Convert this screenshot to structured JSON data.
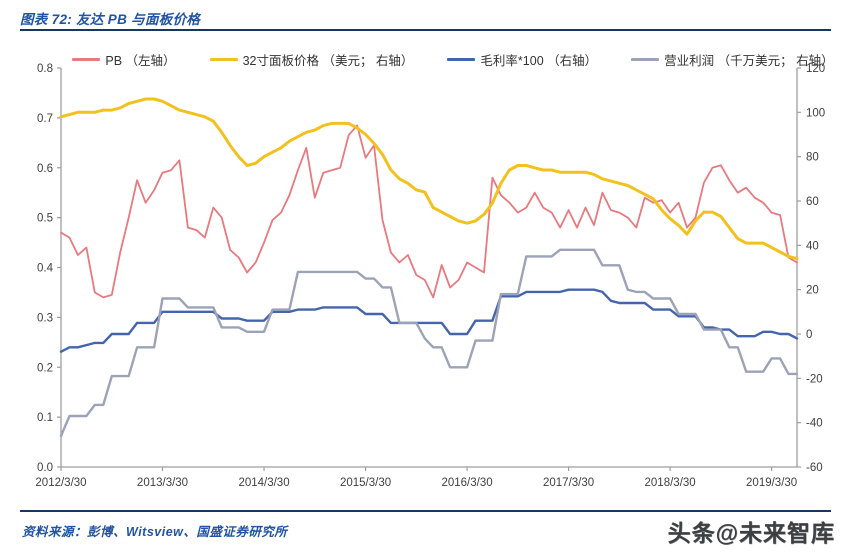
{
  "header": {
    "title": "图表 72:  友达 PB 与面板价格"
  },
  "legend": {
    "items": [
      {
        "id": "pb",
        "label": "PB （左轴）",
        "color": "#E8797F"
      },
      {
        "id": "panel_price",
        "label": "32寸面板价格 （美元； 右轴）",
        "color": "#F2C11E"
      },
      {
        "id": "gross_margin",
        "label": "毛利率*100 （右轴）",
        "color": "#4465AE"
      },
      {
        "id": "operating_profit",
        "label": "营业利润 （千万美元； 右轴）",
        "color": "#9CA3B8"
      }
    ]
  },
  "chart_data": {
    "type": "line",
    "title": "友达 PB 与面板价格",
    "grid": false,
    "legend_position": "top",
    "x": [
      "2012/3",
      "2012/4",
      "2012/5",
      "2012/6",
      "2012/7",
      "2012/8",
      "2012/9",
      "2012/10",
      "2012/11",
      "2012/12",
      "2013/1",
      "2013/2",
      "2013/3",
      "2013/4",
      "2013/5",
      "2013/6",
      "2013/7",
      "2013/8",
      "2013/9",
      "2013/10",
      "2013/11",
      "2013/12",
      "2014/1",
      "2014/2",
      "2014/3",
      "2014/4",
      "2014/5",
      "2014/6",
      "2014/7",
      "2014/8",
      "2014/9",
      "2014/10",
      "2014/11",
      "2014/12",
      "2015/1",
      "2015/2",
      "2015/3",
      "2015/4",
      "2015/5",
      "2015/6",
      "2015/7",
      "2015/8",
      "2015/9",
      "2015/10",
      "2015/11",
      "2015/12",
      "2016/1",
      "2016/2",
      "2016/3",
      "2016/4",
      "2016/5",
      "2016/6",
      "2016/7",
      "2016/8",
      "2016/9",
      "2016/10",
      "2016/11",
      "2016/12",
      "2017/1",
      "2017/2",
      "2017/3",
      "2017/4",
      "2017/5",
      "2017/6",
      "2017/7",
      "2017/8",
      "2017/9",
      "2017/10",
      "2017/11",
      "2017/12",
      "2018/1",
      "2018/2",
      "2018/3",
      "2018/4",
      "2018/5",
      "2018/6",
      "2018/7",
      "2018/8",
      "2018/9",
      "2018/10",
      "2018/11",
      "2018/12",
      "2019/1",
      "2019/2",
      "2019/3",
      "2019/4",
      "2019/5",
      "2019/6"
    ],
    "series": [
      {
        "id": "pb",
        "name": "PB（左轴）",
        "axis": "left",
        "color": "#E8797F",
        "width": 1.8,
        "values": [
          0.47,
          0.46,
          0.425,
          0.44,
          0.35,
          0.34,
          0.345,
          0.43,
          0.5,
          0.575,
          0.53,
          0.555,
          0.59,
          0.595,
          0.615,
          0.48,
          0.475,
          0.46,
          0.52,
          0.5,
          0.435,
          0.42,
          0.39,
          0.41,
          0.45,
          0.495,
          0.51,
          0.545,
          0.595,
          0.64,
          0.54,
          0.59,
          0.595,
          0.6,
          0.665,
          0.685,
          0.62,
          0.645,
          0.495,
          0.43,
          0.41,
          0.425,
          0.385,
          0.375,
          0.34,
          0.405,
          0.36,
          0.375,
          0.41,
          0.4,
          0.39,
          0.58,
          0.545,
          0.53,
          0.51,
          0.52,
          0.55,
          0.52,
          0.51,
          0.48,
          0.515,
          0.48,
          0.52,
          0.485,
          0.55,
          0.515,
          0.51,
          0.5,
          0.48,
          0.54,
          0.53,
          0.535,
          0.51,
          0.53,
          0.48,
          0.5,
          0.57,
          0.6,
          0.605,
          0.575,
          0.55,
          0.56,
          0.54,
          0.53,
          0.51,
          0.505,
          0.42,
          0.41
        ]
      },
      {
        "id": "panel_price",
        "name": "32寸面板价格（美元；右轴）",
        "axis": "right",
        "color": "#F2C11E",
        "width": 3,
        "values": [
          98,
          99,
          100,
          100,
          100,
          101,
          101,
          102,
          104,
          105,
          106,
          106,
          105,
          103,
          101,
          100,
          99,
          98,
          96,
          91,
          85,
          80,
          76,
          77,
          80,
          82,
          84,
          87,
          89,
          91,
          92,
          94,
          95,
          95,
          95,
          93,
          90,
          86,
          81,
          74,
          70,
          68,
          65,
          64,
          57,
          55,
          53,
          51,
          50,
          51,
          54,
          59,
          68,
          74,
          76,
          76,
          75,
          74,
          74,
          73,
          73,
          73,
          73,
          72,
          70,
          69,
          68,
          67,
          65,
          63,
          61,
          56,
          52,
          49,
          45,
          51,
          55,
          55,
          53,
          48,
          43,
          41,
          41,
          41,
          39,
          37,
          35,
          34
        ]
      },
      {
        "id": "gross_margin",
        "name": "毛利率*100（右轴）",
        "axis": "right",
        "color": "#4465AE",
        "width": 2.4,
        "values": [
          -8,
          -6,
          -6,
          -5,
          -4,
          -4,
          0,
          0,
          0,
          5,
          5,
          5,
          10,
          10,
          10,
          10,
          10,
          10,
          10,
          7,
          7,
          7,
          6,
          6,
          6,
          10,
          10,
          10,
          11,
          11,
          11,
          12,
          12,
          12,
          12,
          12,
          9,
          9,
          9,
          5,
          5,
          5,
          5,
          5,
          5,
          5,
          0,
          0,
          0,
          6,
          6,
          6,
          17,
          17,
          17,
          19,
          19,
          19,
          19,
          19,
          20,
          20,
          20,
          20,
          19,
          15,
          14,
          14,
          14,
          14,
          11,
          11,
          11,
          8,
          8,
          8,
          3,
          3,
          2,
          2,
          -1,
          -1,
          -1,
          1,
          1,
          0,
          0,
          -2
        ]
      },
      {
        "id": "operating_profit",
        "name": "营业利润（千万美元；右轴）",
        "axis": "right",
        "color": "#9CA3B8",
        "width": 2.4,
        "values": [
          -46,
          -37,
          -37,
          -37,
          -32,
          -32,
          -19,
          -19,
          -19,
          -6,
          -6,
          -6,
          16,
          16,
          16,
          12,
          12,
          12,
          12,
          3,
          3,
          3,
          1,
          1,
          1,
          11,
          11,
          11,
          28,
          28,
          28,
          28,
          28,
          28,
          28,
          28,
          25,
          25,
          21,
          21,
          5,
          5,
          5,
          -2,
          -6,
          -6,
          -15,
          -15,
          -15,
          -3,
          -3,
          -3,
          18,
          18,
          18,
          35,
          35,
          35,
          35,
          38,
          38,
          38,
          38,
          38,
          31,
          31,
          31,
          20,
          19,
          19,
          16,
          16,
          16,
          9,
          9,
          9,
          2,
          2,
          2,
          -6,
          -6,
          -17,
          -17,
          -17,
          -11,
          -11,
          -18,
          -18
        ]
      }
    ],
    "axes": {
      "left": {
        "min": 0,
        "max": 0.8,
        "tick_labels": [
          "0.0",
          "0.1",
          "0.2",
          "0.3",
          "0.4",
          "0.5",
          "0.6",
          "0.7",
          "0.8"
        ]
      },
      "right": {
        "min": -60,
        "max": 120,
        "tick_labels": [
          "-60",
          "-40",
          "-20",
          "0",
          "20",
          "40",
          "60",
          "80",
          "100",
          "120"
        ]
      },
      "x": {
        "tick_indices": [
          0,
          12,
          24,
          36,
          48,
          60,
          72,
          84
        ],
        "tick_labels": [
          "2012/3/30",
          "2013/3/30",
          "2014/3/30",
          "2015/3/30",
          "2016/3/30",
          "2017/3/30",
          "2018/3/30",
          "2019/3/30"
        ]
      }
    }
  },
  "footer": {
    "source": "资料来源：彭博、Witsview、国盛证券研究所",
    "watermark": "头条@未来智库"
  }
}
